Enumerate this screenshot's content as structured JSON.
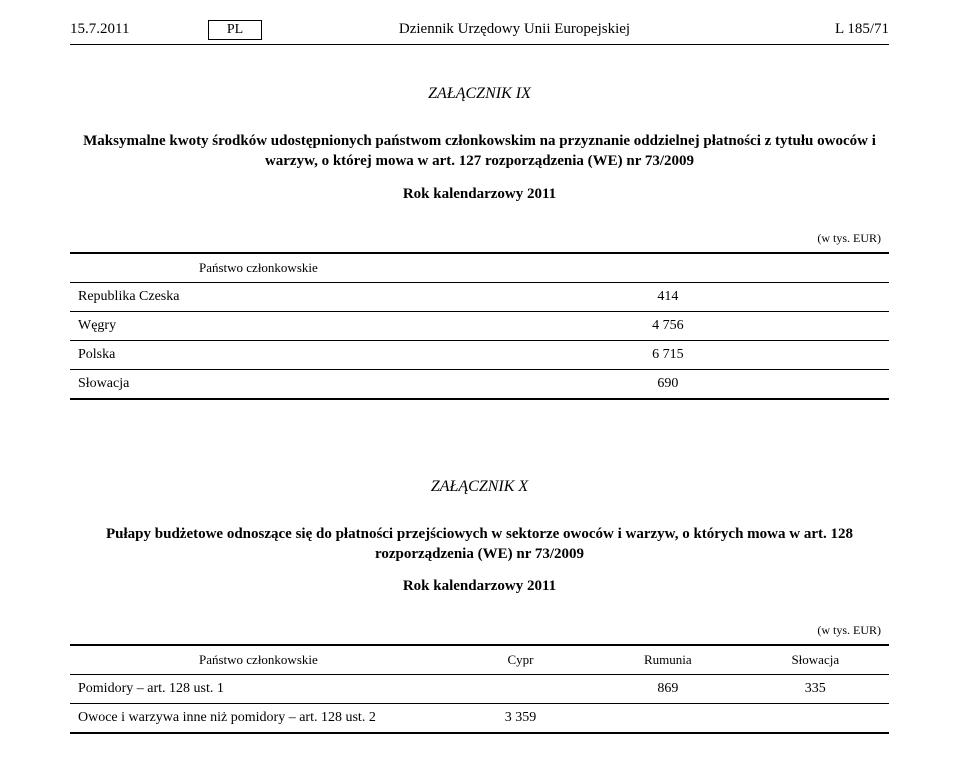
{
  "header": {
    "date": "15.7.2011",
    "lang": "PL",
    "journal": "Dziennik Urzędowy Unii Europejskiej",
    "page": "L 185/71"
  },
  "annex9": {
    "label": "ZAŁĄCZNIK IX",
    "caption": "Maksymalne kwoty środków udostępnionych państwom członkowskim na przyznanie oddzielnej płatności z tytułu owoców i warzyw, o której mowa w art. 127 rozporządzenia (WE) nr 73/2009",
    "subcaption": "Rok kalendarzowy 2011",
    "unit": "(w tys. EUR)",
    "col_header": "Państwo członkowskie",
    "rows": [
      {
        "label": "Republika Czeska",
        "value": "414"
      },
      {
        "label": "Węgry",
        "value": "4 756"
      },
      {
        "label": "Polska",
        "value": "6 715"
      },
      {
        "label": "Słowacja",
        "value": "690"
      }
    ]
  },
  "annex10": {
    "label": "ZAŁĄCZNIK X",
    "caption": "Pułapy budżetowe odnoszące się do płatności przejściowych w sektorze owoców i warzyw, o których mowa w art. 128 rozporządzenia (WE) nr 73/2009",
    "subcaption": "Rok kalendarzowy 2011",
    "unit": "(w tys. EUR)",
    "col_headers": [
      "Państwo członkowskie",
      "Cypr",
      "Rumunia",
      "Słowacja"
    ],
    "rows": [
      {
        "label": "Pomidory – art. 128 ust. 1",
        "c1": "",
        "c2": "869",
        "c3": "335"
      },
      {
        "label": "Owoce i warzywa inne niż pomidory – art. 128 ust. 2",
        "c1": "3 359",
        "c2": "",
        "c3": ""
      }
    ]
  }
}
